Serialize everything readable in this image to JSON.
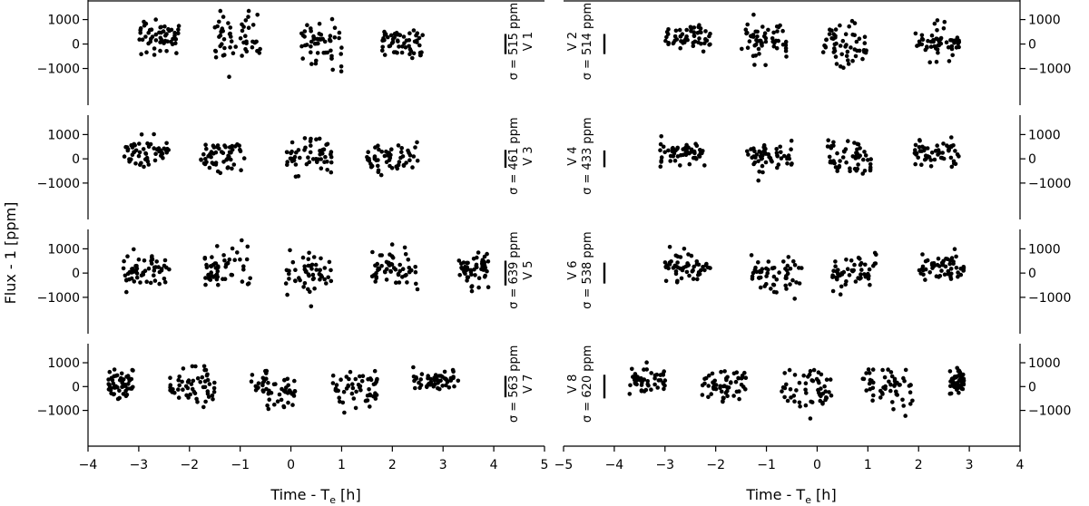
{
  "chart_data": {
    "type": "scatter",
    "xlabel": "Time - T",
    "xlabel_sub": "e",
    "xlabel_unit": " [h]",
    "ylabel": "Flux - 1 [ppm]",
    "y_ticks": [
      1000,
      0,
      -1000
    ],
    "y_tick_labels": [
      "1000",
      "0",
      "−1000"
    ],
    "grid": false,
    "columns": [
      {
        "xlim": [
          -4,
          5
        ],
        "x_ticks": [
          -4,
          -3,
          -2,
          -1,
          0,
          1,
          2,
          3,
          4,
          5
        ],
        "x_tick_labels": [
          "−4",
          "−3",
          "−2",
          "−1",
          "0",
          "1",
          "2",
          "3",
          "4",
          "5"
        ],
        "y_tick_side": "left"
      },
      {
        "xlim": [
          -5,
          4
        ],
        "x_ticks": [
          -5,
          -4,
          -3,
          -2,
          -1,
          0,
          1,
          2,
          3,
          4
        ],
        "x_tick_labels": [
          "−5",
          "−4",
          "−3",
          "−2",
          "−1",
          "0",
          "1",
          "2",
          "3",
          "4"
        ],
        "y_tick_side": "right"
      }
    ],
    "panels": [
      {
        "row": 0,
        "col": 0,
        "visit": "V 1",
        "sigma": "σ = 515 ppm",
        "sigma_ppm": 515,
        "ylim": [
          -2500,
          1800
        ],
        "groups": [
          {
            "x": [
              -3.0,
              -2.2
            ],
            "y": [
              -100,
              1200
            ]
          },
          {
            "x": [
              -1.5,
              -0.6
            ],
            "y": [
              -400,
              1300
            ]
          },
          {
            "x": [
              0.2,
              1.0
            ],
            "y": [
              -650,
              1100
            ]
          },
          {
            "x": [
              1.8,
              2.6
            ],
            "y": [
              -380,
              900
            ]
          }
        ]
      },
      {
        "row": 0,
        "col": 1,
        "visit": "V 2",
        "sigma": "σ = 514 ppm",
        "sigma_ppm": 514,
        "ylim": [
          -2500,
          1800
        ],
        "groups": [
          {
            "x": [
              -3.0,
              -2.1
            ],
            "y": [
              -100,
              900
            ]
          },
          {
            "x": [
              -1.5,
              -0.6
            ],
            "y": [
              -450,
              1000
            ]
          },
          {
            "x": [
              0.1,
              1.0
            ],
            "y": [
              -600,
              1000
            ]
          },
          {
            "x": [
              1.9,
              2.8
            ],
            "y": [
              -330,
              800
            ]
          }
        ]
      },
      {
        "row": 1,
        "col": 0,
        "visit": "V 3",
        "sigma": "σ = 461 ppm",
        "sigma_ppm": 461,
        "ylim": [
          -2500,
          1800
        ],
        "groups": [
          {
            "x": [
              -3.3,
              -2.4
            ],
            "y": [
              -100,
              900
            ]
          },
          {
            "x": [
              -1.8,
              -0.9
            ],
            "y": [
              -350,
              900
            ]
          },
          {
            "x": [
              -0.1,
              0.8
            ],
            "y": [
              -500,
              1000
            ]
          },
          {
            "x": [
              1.5,
              2.5
            ],
            "y": [
              -350,
              850
            ]
          }
        ]
      },
      {
        "row": 1,
        "col": 1,
        "visit": "V 4",
        "sigma": "σ = 433 ppm",
        "sigma_ppm": 433,
        "ylim": [
          -2500,
          1800
        ],
        "groups": [
          {
            "x": [
              -3.1,
              -2.2
            ],
            "y": [
              -50,
              850
            ]
          },
          {
            "x": [
              -1.4,
              -0.5
            ],
            "y": [
              -300,
              750
            ]
          },
          {
            "x": [
              0.2,
              1.1
            ],
            "y": [
              -500,
              800
            ]
          },
          {
            "x": [
              1.9,
              2.8
            ],
            "y": [
              -150,
              800
            ]
          }
        ]
      },
      {
        "row": 2,
        "col": 0,
        "visit": "V 5",
        "sigma": "σ = 639 ppm",
        "sigma_ppm": 639,
        "ylim": [
          -2500,
          1800
        ],
        "groups": [
          {
            "x": [
              -3.3,
              -2.4
            ],
            "y": [
              -250,
              1100
            ]
          },
          {
            "x": [
              -1.7,
              -0.8
            ],
            "y": [
              -350,
              1100
            ]
          },
          {
            "x": [
              -0.1,
              0.8
            ],
            "y": [
              -550,
              900
            ]
          },
          {
            "x": [
              1.6,
              2.5
            ],
            "y": [
              -300,
              1000
            ]
          },
          {
            "x": [
              3.3,
              3.9
            ],
            "y": [
              -250,
              900
            ]
          }
        ]
      },
      {
        "row": 2,
        "col": 1,
        "visit": "V 6",
        "sigma": "σ = 538 ppm",
        "sigma_ppm": 538,
        "ylim": [
          -2500,
          1800
        ],
        "groups": [
          {
            "x": [
              -3.0,
              -2.1
            ],
            "y": [
              -150,
              900
            ]
          },
          {
            "x": [
              -1.3,
              -0.3
            ],
            "y": [
              -650,
              900
            ]
          },
          {
            "x": [
              0.3,
              1.2
            ],
            "y": [
              -400,
              800
            ]
          },
          {
            "x": [
              2.0,
              2.9
            ],
            "y": [
              -150,
              800
            ]
          }
        ]
      },
      {
        "row": 3,
        "col": 0,
        "visit": "V 7",
        "sigma": "σ = 563 ppm",
        "sigma_ppm": 563,
        "ylim": [
          -2500,
          1800
        ],
        "groups": [
          {
            "x": [
              -3.6,
              -3.1
            ],
            "y": [
              -250,
              800
            ]
          },
          {
            "x": [
              -2.4,
              -1.5
            ],
            "y": [
              -500,
              850
            ]
          },
          {
            "x": [
              -0.8,
              0.1
            ],
            "y": [
              -500,
              800
            ]
          },
          {
            "x": [
              0.8,
              1.7
            ],
            "y": [
              -500,
              900
            ]
          },
          {
            "x": [
              2.4,
              3.3
            ],
            "y": [
              0,
              800
            ]
          }
        ]
      },
      {
        "row": 3,
        "col": 1,
        "visit": "V 8",
        "sigma": "σ = 620 ppm",
        "sigma_ppm": 620,
        "ylim": [
          -2500,
          1800
        ],
        "groups": [
          {
            "x": [
              -3.7,
              -3.0
            ],
            "y": [
              -100,
              900
            ]
          },
          {
            "x": [
              -2.3,
              -1.4
            ],
            "y": [
              -350,
              850
            ]
          },
          {
            "x": [
              -0.7,
              0.3
            ],
            "y": [
              -650,
              800
            ]
          },
          {
            "x": [
              0.9,
              1.9
            ],
            "y": [
              -600,
              900
            ]
          },
          {
            "x": [
              2.6,
              2.9
            ],
            "y": [
              -100,
              800
            ]
          }
        ]
      }
    ]
  }
}
